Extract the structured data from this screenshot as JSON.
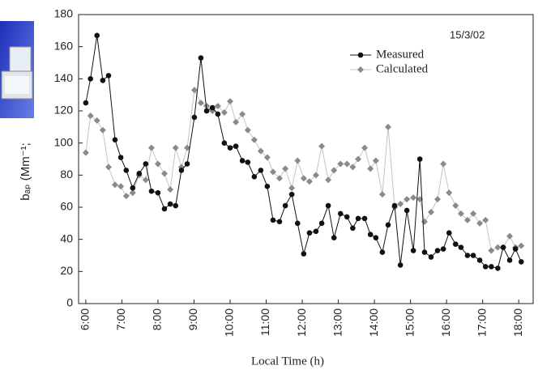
{
  "chart_data": {
    "type": "line",
    "annotation": "15/3/02",
    "x_label": "Local Time (h)",
    "y_label": "bₐₚ (Mm⁻¹;",
    "x": [
      6.0,
      6.13,
      6.31,
      6.47,
      6.63,
      6.81,
      6.97,
      7.12,
      7.3,
      7.48,
      7.66,
      7.82,
      8.0,
      8.18,
      8.34,
      8.49,
      8.65,
      8.81,
      9.01,
      9.19,
      9.35,
      9.51,
      9.66,
      9.84,
      10.0,
      10.16,
      10.34,
      10.49,
      10.67,
      10.85,
      11.03,
      11.19,
      11.37,
      11.53,
      11.71,
      11.87,
      12.04,
      12.2,
      12.38,
      12.54,
      12.72,
      12.88,
      13.06,
      13.24,
      13.4,
      13.55,
      13.73,
      13.89,
      14.04,
      14.22,
      14.38,
      14.56,
      14.72,
      14.9,
      15.08,
      15.26,
      15.39,
      15.57,
      15.75,
      15.91,
      16.07,
      16.25,
      16.4,
      16.58,
      16.74,
      16.92,
      17.08,
      17.24,
      17.42,
      17.57,
      17.75,
      17.91,
      18.07
    ],
    "series": [
      {
        "name": "Measured",
        "color": "#111111",
        "marker": "circle",
        "values": [
          125,
          140,
          167,
          139,
          142,
          102,
          91,
          83,
          72,
          81,
          87,
          70,
          69,
          59,
          62,
          61,
          83,
          87,
          116,
          153,
          120,
          122,
          118,
          100,
          97,
          98,
          89,
          88,
          79,
          83,
          73,
          52,
          51,
          61,
          68,
          50,
          31,
          44,
          45,
          50,
          61,
          41,
          56,
          54,
          47,
          53,
          53,
          43,
          41,
          32,
          49,
          61,
          24,
          58,
          33,
          90,
          32,
          29,
          33,
          34,
          44,
          37,
          35,
          30,
          30,
          27,
          23,
          23,
          22,
          35,
          27,
          34,
          26
        ]
      },
      {
        "name": "Calculated",
        "color": "#8a8a8a",
        "marker": "diamond",
        "values": [
          94,
          117,
          114,
          108,
          85,
          74,
          73,
          67,
          69,
          80,
          77,
          97,
          87,
          81,
          71,
          97,
          85,
          97,
          133,
          125,
          123,
          120,
          123,
          119,
          126,
          113,
          118,
          108,
          102,
          95,
          91,
          82,
          78,
          84,
          72,
          89,
          78,
          76,
          80,
          98,
          77,
          83,
          87,
          87,
          85,
          90,
          97,
          84,
          89,
          68,
          110,
          60,
          62,
          65,
          66,
          65,
          51,
          57,
          65,
          87,
          69,
          61,
          56,
          52,
          56,
          50,
          52,
          33,
          35,
          35,
          42,
          35,
          36
        ]
      }
    ],
    "xlim": [
      5.8,
      18.4
    ],
    "ylim": [
      0,
      180
    ],
    "xticks": [
      {
        "value": 6,
        "label": "6:00"
      },
      {
        "value": 7,
        "label": "7:00"
      },
      {
        "value": 8,
        "label": "8:00"
      },
      {
        "value": 9,
        "label": "9:00"
      },
      {
        "value": 10,
        "label": "10:00"
      },
      {
        "value": 11,
        "label": "11:00"
      },
      {
        "value": 12,
        "label": "12:00"
      },
      {
        "value": 13,
        "label": "13:00"
      },
      {
        "value": 14,
        "label": "14:00"
      },
      {
        "value": 15,
        "label": "15:00"
      },
      {
        "value": 16,
        "label": "16:00"
      },
      {
        "value": 17,
        "label": "17:00"
      },
      {
        "value": 18,
        "label": "18:00"
      }
    ],
    "yticks": [
      0,
      20,
      40,
      60,
      80,
      100,
      120,
      140,
      160,
      180
    ],
    "grid": false,
    "legend": "upper-right"
  }
}
